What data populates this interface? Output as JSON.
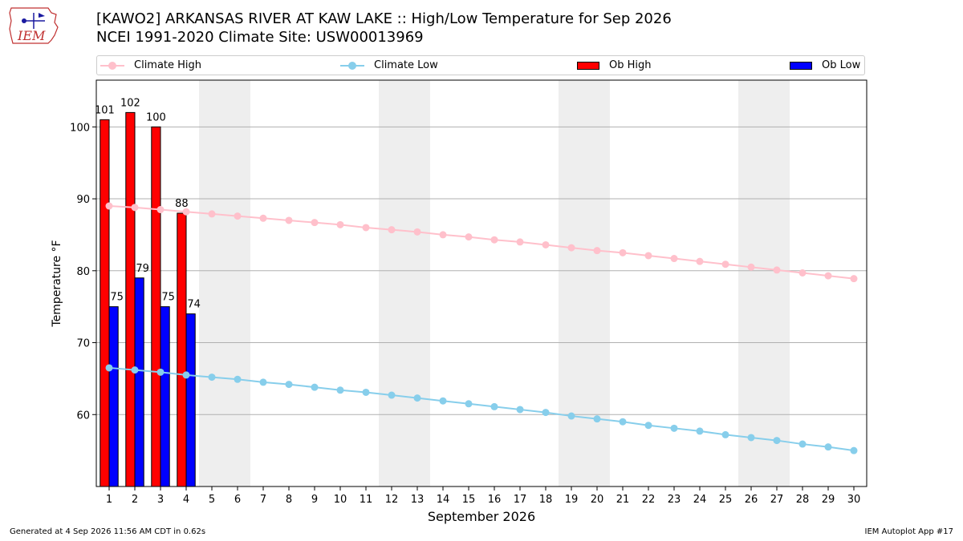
{
  "header": {
    "logo_text": "IEM",
    "title_line1": "[KAWO2] ARKANSAS RIVER  AT KAW LAKE :: High/Low Temperature for Sep 2026",
    "title_line2": "NCEI 1991-2020 Climate Site: USW00013969"
  },
  "legend": {
    "items": [
      {
        "label": "Climate High",
        "kind": "line",
        "color": "#ffc0cb"
      },
      {
        "label": "Climate Low",
        "kind": "line",
        "color": "#87ceeb"
      },
      {
        "label": "Ob High",
        "kind": "box",
        "color": "#ff0000"
      },
      {
        "label": "Ob Low",
        "kind": "box",
        "color": "#0000ff"
      }
    ]
  },
  "footer": {
    "generated": "Generated at 4 Sep 2026 11:56 AM CDT in 0.62s",
    "app": "IEM Autoplot App #17"
  },
  "chart_data": {
    "type": "bar",
    "xlabel": "September 2026",
    "ylabel": "Temperature °F",
    "x": [
      1,
      2,
      3,
      4,
      5,
      6,
      7,
      8,
      9,
      10,
      11,
      12,
      13,
      14,
      15,
      16,
      17,
      18,
      19,
      20,
      21,
      22,
      23,
      24,
      25,
      26,
      27,
      28,
      29,
      30
    ],
    "xlim": [
      0.5,
      30.5
    ],
    "ylim": [
      50,
      106.5
    ],
    "yticks": [
      60,
      70,
      80,
      90,
      100
    ],
    "grid": true,
    "legend_position": "top",
    "weekend_shading": [
      [
        4.5,
        6.5
      ],
      [
        11.5,
        13.5
      ],
      [
        18.5,
        20.5
      ],
      [
        25.5,
        27.5
      ]
    ],
    "series": [
      {
        "name": "Ob High",
        "kind": "bar",
        "color": "#ff0000",
        "x": [
          1,
          2,
          3,
          4
        ],
        "values": [
          101,
          102,
          100,
          88
        ],
        "labels": [
          "101",
          "102",
          "100",
          "88"
        ]
      },
      {
        "name": "Ob Low",
        "kind": "bar",
        "color": "#0000ff",
        "x": [
          1,
          2,
          3,
          4
        ],
        "values": [
          75,
          79,
          75,
          74
        ],
        "labels": [
          "75",
          "79",
          "75",
          "74"
        ]
      },
      {
        "name": "Climate High",
        "kind": "line",
        "color": "#ffc0cb",
        "values": [
          89.0,
          88.8,
          88.5,
          88.2,
          87.9,
          87.6,
          87.3,
          87.0,
          86.7,
          86.4,
          86.0,
          85.7,
          85.4,
          85.0,
          84.7,
          84.3,
          84.0,
          83.6,
          83.2,
          82.8,
          82.5,
          82.1,
          81.7,
          81.3,
          80.9,
          80.5,
          80.1,
          79.7,
          79.3,
          78.9
        ]
      },
      {
        "name": "Climate Low",
        "kind": "line",
        "color": "#87ceeb",
        "values": [
          66.5,
          66.2,
          65.9,
          65.5,
          65.2,
          64.9,
          64.5,
          64.2,
          63.8,
          63.4,
          63.1,
          62.7,
          62.3,
          61.9,
          61.5,
          61.1,
          60.7,
          60.3,
          59.8,
          59.4,
          59.0,
          58.5,
          58.1,
          57.7,
          57.2,
          56.8,
          56.4,
          55.9,
          55.5,
          55.0
        ]
      }
    ]
  }
}
